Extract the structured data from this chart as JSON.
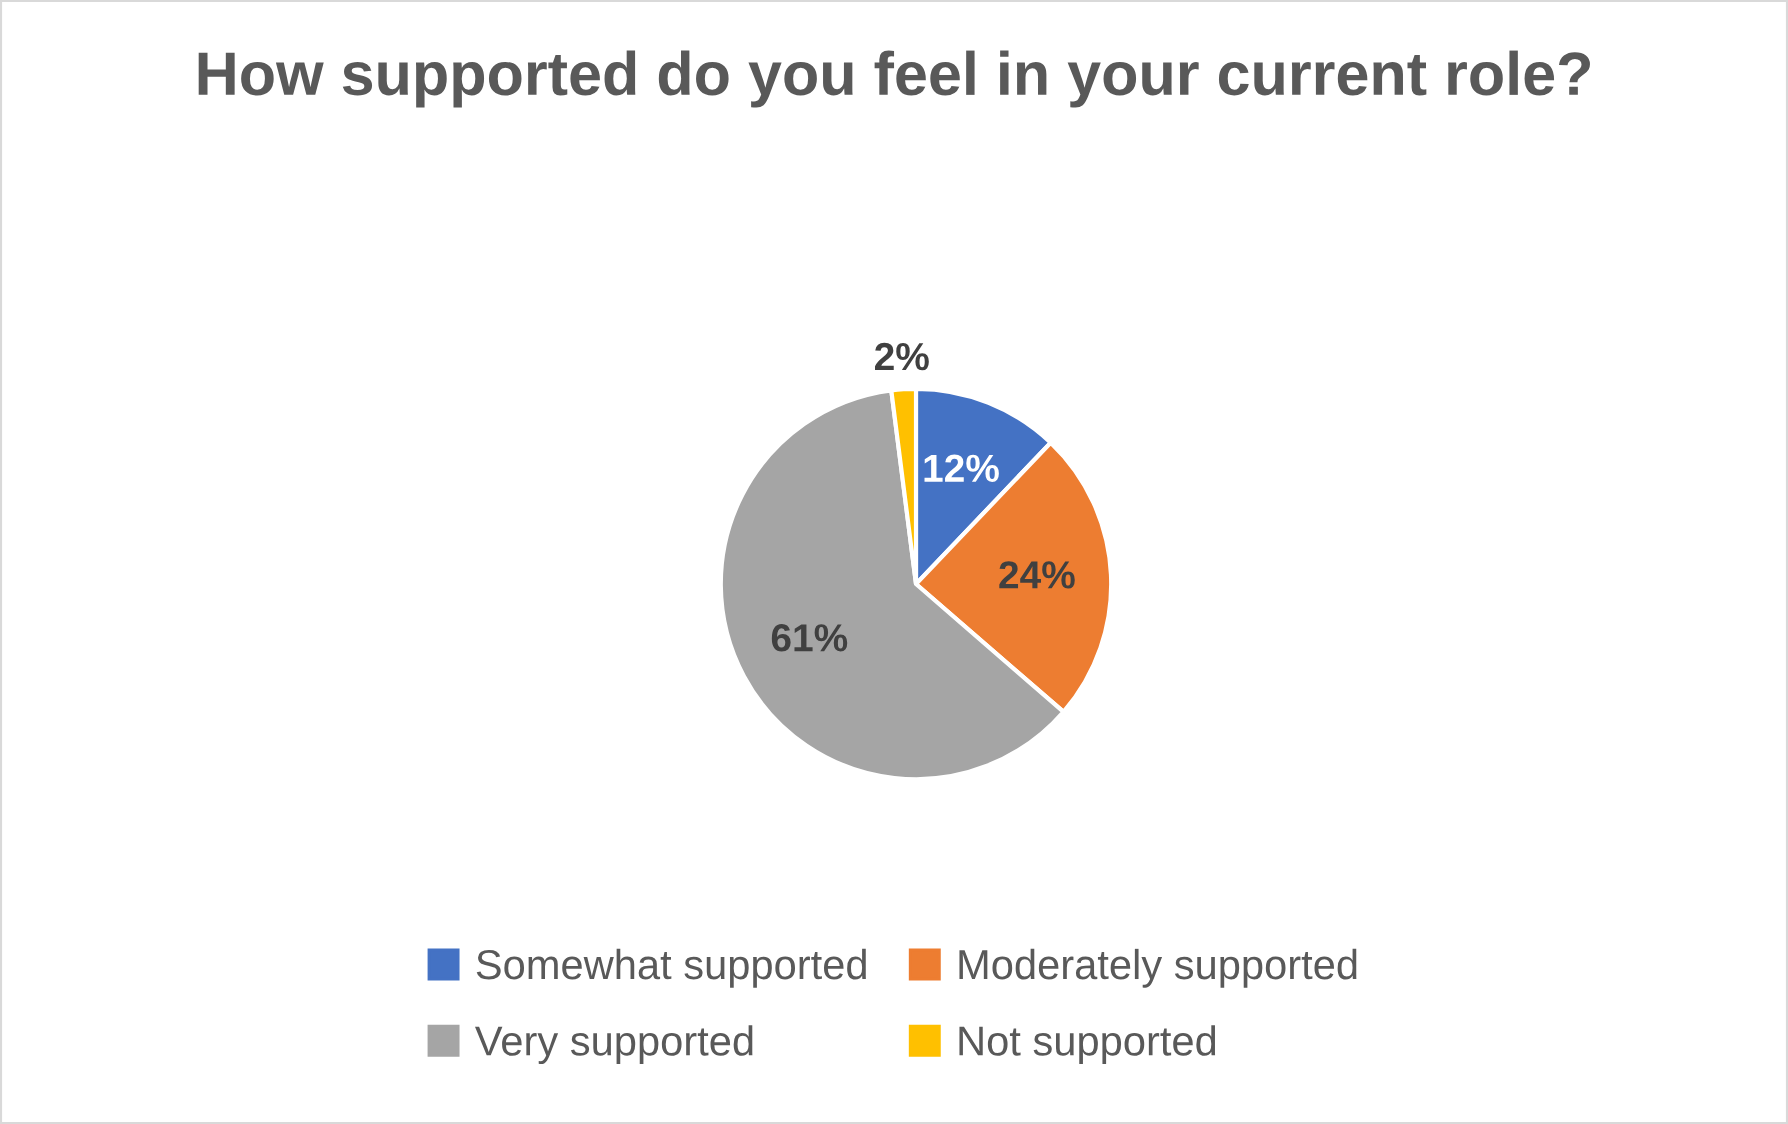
{
  "chart_data": {
    "type": "pie",
    "title": "How supported do you feel in your current role?",
    "categories": [
      "Somewhat supported",
      "Moderately supported",
      "Very supported",
      "Not supported"
    ],
    "values": [
      12,
      24,
      61,
      2
    ],
    "colors": [
      "#4472c4",
      "#ed7d31",
      "#a5a5a5",
      "#ffc000"
    ],
    "value_labels": [
      "12%",
      "24%",
      "61%",
      "2%"
    ],
    "legend": "bottom"
  }
}
